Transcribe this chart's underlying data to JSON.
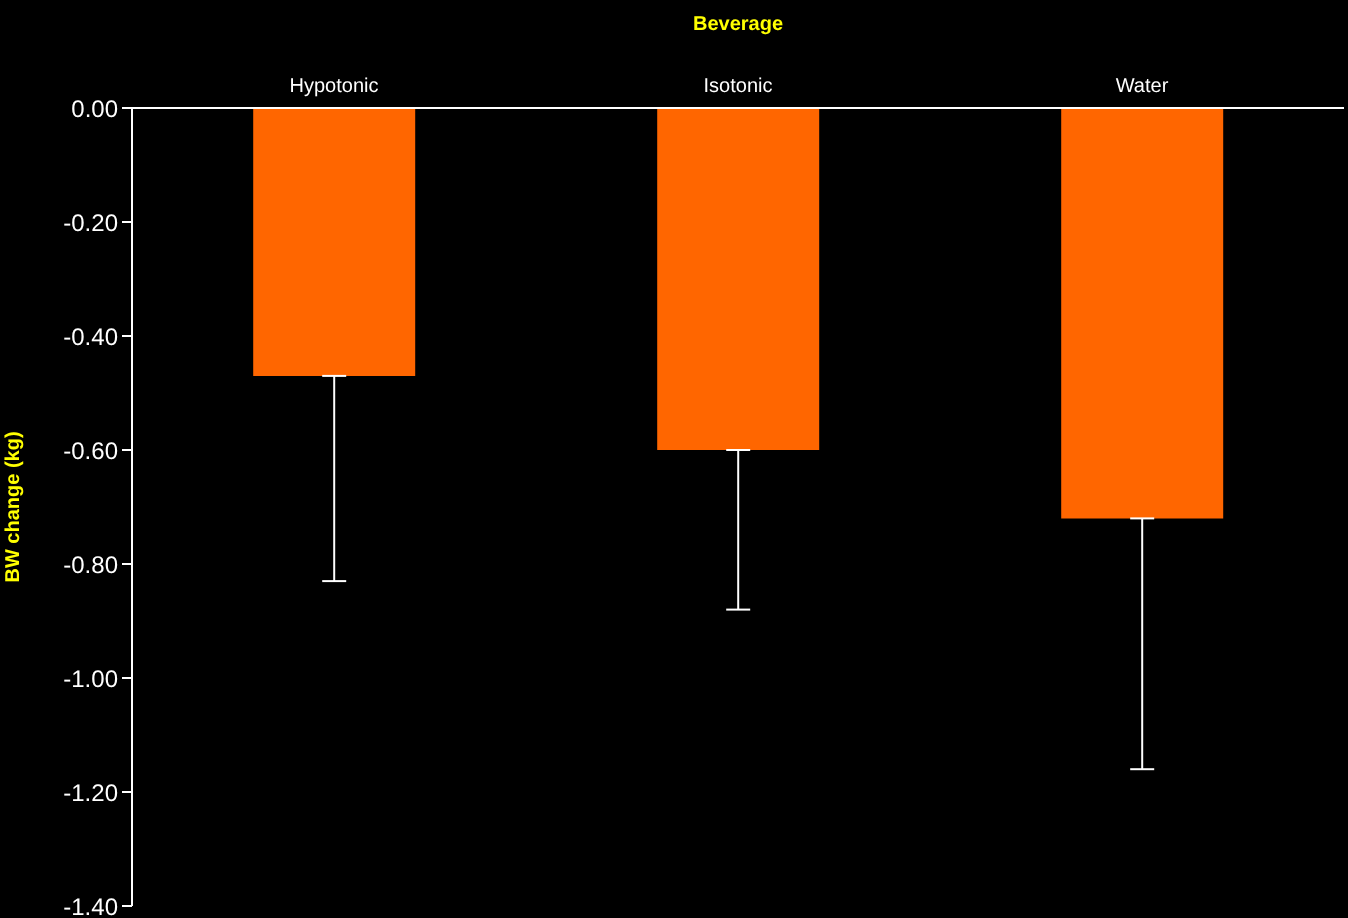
{
  "chart_data": {
    "type": "bar",
    "xlabel": "Beverage",
    "ylabel": "BW change (kg)",
    "categories": [
      "Hypotonic",
      "Isotonic",
      "Water"
    ],
    "series": [
      {
        "color": "#ff6600",
        "values": [
          -0.47,
          -0.6,
          -0.72
        ],
        "errors": [
          [
            -0.83,
            -0.47
          ],
          [
            -0.88,
            -0.6
          ],
          [
            -1.16,
            -0.72
          ]
        ]
      }
    ],
    "ylim": [
      -1.4,
      0
    ],
    "yticks": [
      {
        "value": 0,
        "label": "0.00"
      },
      {
        "value": -0.2,
        "label": "-0.20"
      },
      {
        "value": -0.4,
        "label": "-0.40"
      },
      {
        "value": -0.6,
        "label": "-0.60"
      },
      {
        "value": -0.8,
        "label": "-0.80"
      },
      {
        "value": -1.0,
        "label": "-1.00"
      },
      {
        "value": -1.2,
        "label": "-1.20"
      },
      {
        "value": -1.4,
        "label": "-1.40"
      }
    ],
    "grid": false,
    "legend": false
  }
}
